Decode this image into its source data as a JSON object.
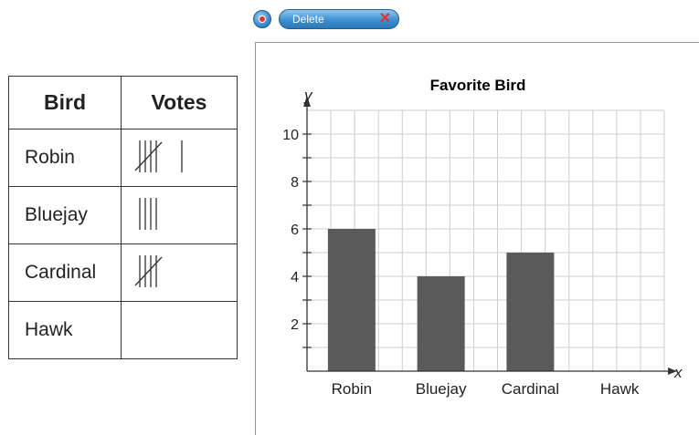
{
  "toolbar": {
    "tool_icon": "pin-tool-icon",
    "delete_label": "Delete",
    "delete_close_glyph": "✕"
  },
  "table": {
    "headers": [
      "Bird",
      "Votes"
    ],
    "rows": [
      {
        "bird": "Robin",
        "tally": 6
      },
      {
        "bird": "Bluejay",
        "tally": 4
      },
      {
        "bird": "Cardinal",
        "tally": 5
      },
      {
        "bird": "Hawk",
        "tally": 0
      }
    ]
  },
  "chart_data": {
    "type": "bar",
    "title": "Favorite Bird",
    "xlabel": "x",
    "ylabel": "y",
    "categories": [
      "Robin",
      "Bluejay",
      "Cardinal",
      "Hawk"
    ],
    "values": [
      6,
      4,
      5,
      0
    ],
    "ylim": [
      0,
      11
    ],
    "y_ticks": [
      "2",
      "4",
      "6",
      "8",
      "10"
    ],
    "grid": true,
    "bar_color": "#5a5a5a"
  }
}
